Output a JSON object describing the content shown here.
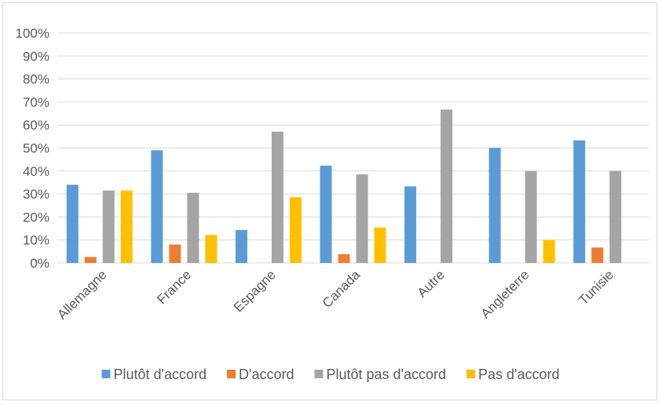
{
  "chart_data": {
    "type": "bar",
    "categories": [
      "Allemagne",
      "France",
      "Espagne",
      "Canada",
      "Autre",
      "Angleterre",
      "Tunisie"
    ],
    "series": [
      {
        "name": "Plutôt d'accord",
        "color": "#5b9bd5",
        "values": [
          34,
          49,
          14.3,
          42.3,
          33.3,
          50,
          53.3
        ]
      },
      {
        "name": "D'accord",
        "color": "#ed7d31",
        "values": [
          2.6,
          8,
          0,
          3.8,
          0,
          0,
          6.7
        ]
      },
      {
        "name": "Plutôt pas d'accord",
        "color": "#a5a5a5",
        "values": [
          31.5,
          30.5,
          57.1,
          38.5,
          66.7,
          40,
          40
        ]
      },
      {
        "name": "Pas d'accord",
        "color": "#ffc000",
        "values": [
          31.5,
          12.2,
          28.6,
          15.4,
          0,
          10,
          0
        ]
      }
    ],
    "yticks": [
      "0%",
      "10%",
      "20%",
      "30%",
      "40%",
      "50%",
      "60%",
      "70%",
      "80%",
      "90%",
      "100%"
    ],
    "ylim": [
      0,
      100
    ],
    "grid": true,
    "legend_position": "bottom"
  }
}
